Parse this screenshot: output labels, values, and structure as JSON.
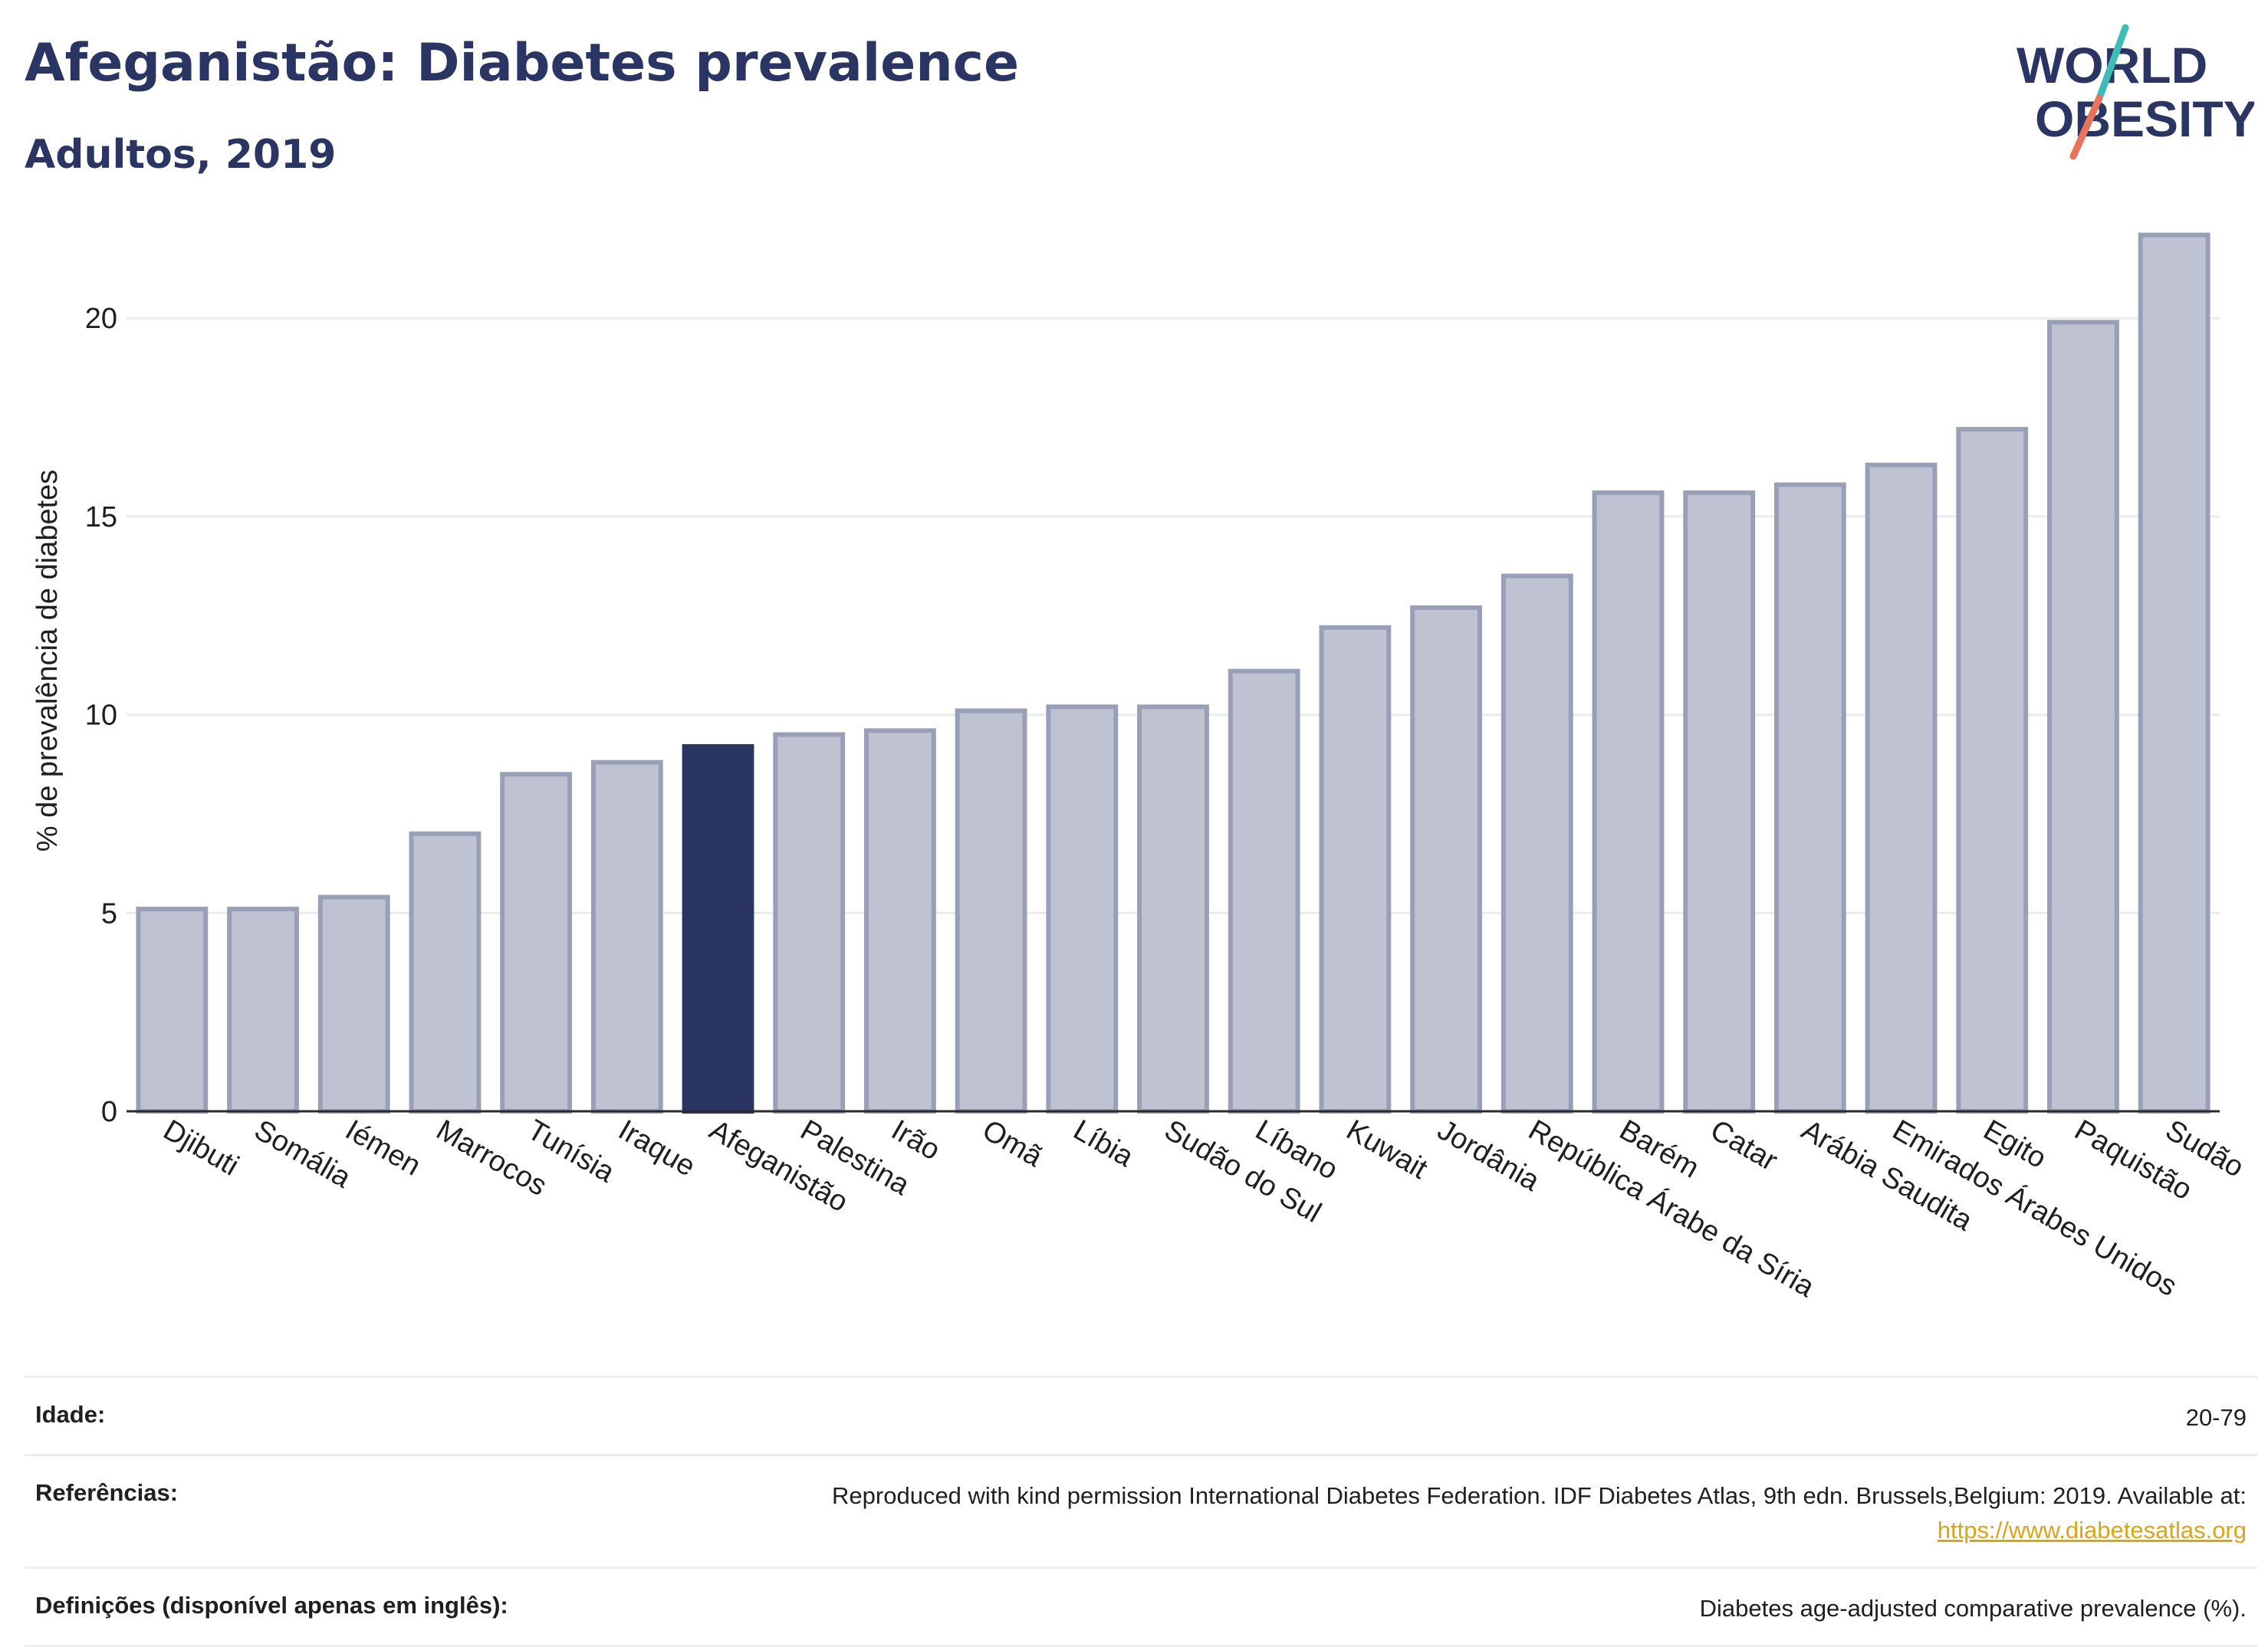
{
  "header": {
    "title": "Afeganistão: Diabetes prevalence",
    "subtitle": "Adultos, 2019"
  },
  "logo": {
    "line1": "WORLD",
    "line2": "OBESITY",
    "colors": {
      "text": "#2b3563",
      "slash_teal": "#3dbdb5",
      "slash_coral": "#e8735a"
    }
  },
  "colors": {
    "highlight_bar": "#2b3563",
    "bar_fill": "#bfc3d1",
    "bar_stroke": "#9a9fb8",
    "grid": "#e9ebef",
    "axis_text": "#1f1f1f"
  },
  "chart_data": {
    "type": "bar",
    "title": "Afeganistão: Diabetes prevalence",
    "subtitle": "Adultos, 2019",
    "xlabel": "",
    "ylabel": "% de prevalência de diabetes",
    "ylim": [
      0,
      23
    ],
    "yticks": [
      0,
      5,
      10,
      15,
      20
    ],
    "grid": true,
    "highlight": "Afeganistão",
    "categories": [
      "Djibuti",
      "Somália",
      "Iémen",
      "Marrocos",
      "Tunísia",
      "Iraque",
      "Afeganistão",
      "Palestina",
      "Irão",
      "Omã",
      "Líbia",
      "Sudão do Sul",
      "Líbano",
      "Kuwait",
      "Jordânia",
      "República Árabe da Síria",
      "Barém",
      "Catar",
      "Arábia Saudita",
      "Emirados Árabes Unidos",
      "Egito",
      "Paquistão",
      "Sudão"
    ],
    "values": [
      5.1,
      5.1,
      5.4,
      7.0,
      8.5,
      8.8,
      9.2,
      9.5,
      9.6,
      10.1,
      10.2,
      10.2,
      11.1,
      12.2,
      12.7,
      13.5,
      15.6,
      15.6,
      15.8,
      16.3,
      17.2,
      19.9,
      22.1
    ]
  },
  "footer": {
    "rows": [
      {
        "label": "Idade:",
        "value": "20-79"
      },
      {
        "label": "Referências:",
        "value": "Reproduced with kind permission International Diabetes Federation. IDF Diabetes Atlas, 9th edn. Brussels,Belgium: 2019. Available at:",
        "link": "https://www.diabetesatlas.org"
      },
      {
        "label": "Definições (disponível apenas em inglês):",
        "value": "Diabetes age-adjusted comparative prevalence (%)."
      }
    ]
  }
}
